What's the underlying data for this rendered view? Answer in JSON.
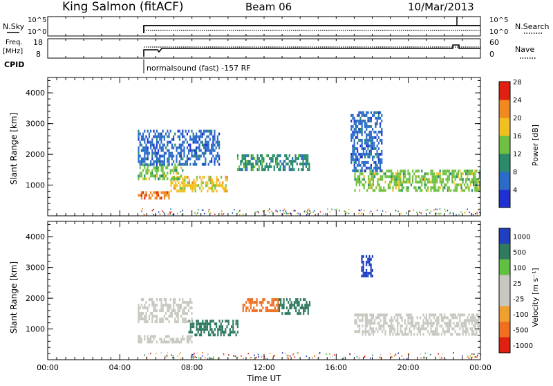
{
  "header": {
    "station": "King Salmon (fitACF)",
    "beam": "Beam 06",
    "date": "10/Mar/2013"
  },
  "status_panels": {
    "nsky_label": "N.Sky",
    "nsky_ticks": [
      "10^5",
      "10^0"
    ],
    "nsearch_label": "N.Search",
    "nsearch_ticks": [
      "10^5",
      "10^0"
    ],
    "freq_label_1": "Freq.",
    "freq_label_2": "[MHz]",
    "freq_ticks": [
      "18",
      "8"
    ],
    "nave_label": "Nave",
    "nave_ticks": [
      "60",
      "0"
    ],
    "cpid_label": "CPID",
    "cpid_text": "normalsound (fast) -157 RF"
  },
  "chart_data": [
    {
      "type": "heatmap",
      "panel": "power",
      "ylabel": "Slant Range [km]",
      "yticks": [
        "1000",
        "2000",
        "3000",
        "4000"
      ],
      "ylim": [
        0,
        4500
      ],
      "xlim": [
        0,
        24
      ],
      "colorbar_label": "Power [dB]",
      "colorbar_ticks": [
        "4",
        "8",
        "12",
        "16",
        "20",
        "24",
        "28"
      ],
      "colorbar_colors": [
        "#2030d0",
        "#2a6cc8",
        "#2a8a6a",
        "#6fc040",
        "#f0c020",
        "#f08a20",
        "#e02010"
      ],
      "regions": [
        {
          "t0": 5.0,
          "t1": 6.8,
          "r0": 550,
          "r1": 800,
          "value": 22
        },
        {
          "t0": 6.8,
          "t1": 10.0,
          "r0": 800,
          "r1": 1300,
          "value": 18
        },
        {
          "t0": 5.0,
          "t1": 7.5,
          "r0": 1200,
          "r1": 1700,
          "value": 16
        },
        {
          "t0": 5.0,
          "t1": 9.5,
          "r0": 1700,
          "r1": 2800,
          "value": 6
        },
        {
          "t0": 10.5,
          "t1": 14.5,
          "r0": 1500,
          "r1": 2000,
          "value": 10
        },
        {
          "t0": 17.0,
          "t1": 24.0,
          "r0": 800,
          "r1": 1500,
          "value": 14
        },
        {
          "t0": 16.8,
          "t1": 18.5,
          "r0": 1500,
          "r1": 3400,
          "value": 6
        }
      ]
    },
    {
      "type": "heatmap",
      "panel": "velocity",
      "ylabel": "Slant Range [km]",
      "yticks": [
        "1000",
        "2000",
        "3000",
        "4000"
      ],
      "ylim": [
        0,
        4500
      ],
      "xlim": [
        0,
        24
      ],
      "colorbar_label": "Velocity [m s⁻¹]",
      "colorbar_ticks": [
        "1000",
        "500",
        "100",
        "25",
        "-25",
        "-100",
        "-500",
        "-1000"
      ],
      "colorbar_colors": [
        "#2040c0",
        "#307a60",
        "#60c040",
        "#c8c8c0",
        "#c8c8c0",
        "#f0a030",
        "#f07020",
        "#e02010"
      ],
      "regions": [
        {
          "t0": 5.0,
          "t1": 8.0,
          "r0": 550,
          "r1": 800,
          "value": 0
        },
        {
          "t0": 7.8,
          "t1": 10.5,
          "r0": 800,
          "r1": 1300,
          "value": 150
        },
        {
          "t0": 5.0,
          "t1": 8.0,
          "r0": 1200,
          "r1": 2000,
          "value": 0
        },
        {
          "t0": 10.8,
          "t1": 12.8,
          "r0": 1600,
          "r1": 2000,
          "value": -300
        },
        {
          "t0": 12.8,
          "t1": 14.5,
          "r0": 1500,
          "r1": 2000,
          "value": 300
        },
        {
          "t0": 17.0,
          "t1": 24.0,
          "r0": 800,
          "r1": 1500,
          "value": 0
        },
        {
          "t0": 17.3,
          "t1": 18.0,
          "r0": 2700,
          "r1": 3400,
          "value": 800
        }
      ]
    }
  ],
  "xaxis": {
    "ticks": [
      "00:00",
      "04:00",
      "08:00",
      "12:00",
      "16:00",
      "20:00",
      "00:00"
    ],
    "label": "Time UT"
  }
}
